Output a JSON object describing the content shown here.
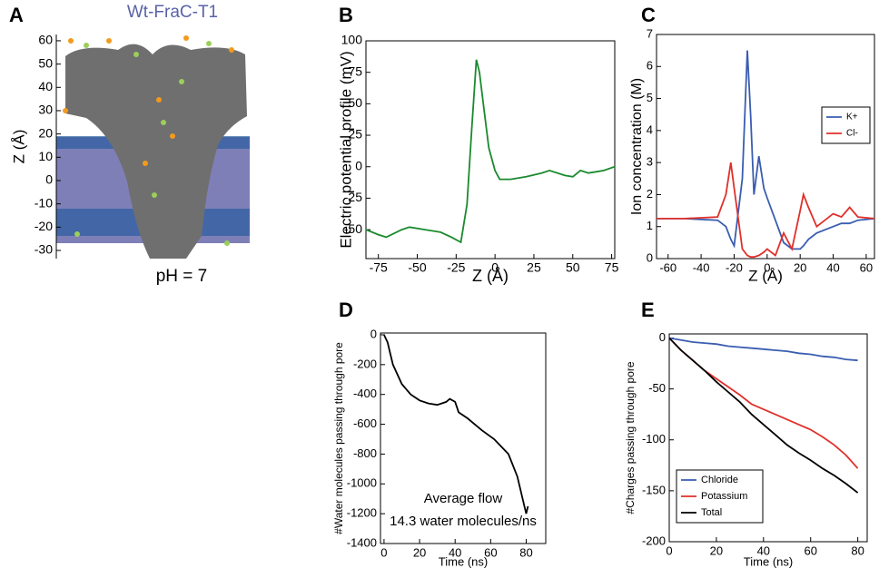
{
  "chart_data": [
    {
      "type": "image",
      "panel": "A",
      "title": "Wt-FraC-T1",
      "caption": "pH = 7",
      "ylabel": "Z (Å)",
      "ylim": [
        -33.5,
        62.7
      ],
      "yticks": [
        60,
        50,
        40,
        30,
        20,
        10,
        0,
        -10,
        -20,
        -30
      ]
    },
    {
      "type": "line",
      "panel": "B",
      "xlabel": "Z (Å)",
      "ylabel": "Electric potential profile (mV)",
      "color": "#1a8a2e",
      "x": [
        -83,
        -75,
        -70,
        -60,
        -55,
        -45,
        -35,
        -28,
        -22,
        -18,
        -15,
        -12,
        -10,
        -7,
        -4,
        0,
        3,
        10,
        20,
        30,
        35,
        45,
        50,
        55,
        60,
        65,
        70,
        77
      ],
      "values": [
        -50,
        -54,
        -56,
        -50,
        -48,
        -50,
        -52,
        -56,
        -60,
        -30,
        30,
        85,
        75,
        45,
        15,
        -3,
        -10,
        -10,
        -8,
        -5,
        -3,
        -7,
        -8,
        -3,
        -5,
        -4,
        -3,
        0
      ],
      "xlim": [
        -83,
        77
      ],
      "xticks": [
        -75,
        -50,
        -25,
        0,
        25,
        50,
        75
      ],
      "ylim": [
        -73,
        100
      ],
      "yticks": [
        -50,
        -25,
        0,
        25,
        50,
        75,
        100
      ]
    },
    {
      "type": "line",
      "panel": "C",
      "xlabel": "Z (Å)",
      "ylabel": "Ion concentration (M)",
      "legend": "upper right",
      "x": [
        -67,
        -50,
        -30,
        -25,
        -22,
        -20,
        -15,
        -12,
        -10,
        -8,
        -5,
        -2,
        0,
        5,
        10,
        15,
        20,
        22,
        25,
        30,
        40,
        45,
        50,
        55,
        65
      ],
      "series": [
        {
          "name": "K+",
          "color": "#3a5db0",
          "values": [
            1.25,
            1.25,
            1.2,
            1.0,
            0.6,
            0.4,
            2.5,
            6.5,
            4.5,
            2.0,
            3.2,
            2.2,
            1.9,
            1.2,
            0.5,
            0.3,
            0.3,
            0.4,
            0.6,
            0.8,
            1.0,
            1.1,
            1.1,
            1.2,
            1.25
          ]
        },
        {
          "name": "Cl-",
          "color": "#e0302a",
          "values": [
            1.25,
            1.25,
            1.3,
            2.0,
            3.0,
            2.2,
            0.3,
            0.1,
            0.05,
            0.05,
            0.1,
            0.2,
            0.3,
            0.1,
            0.8,
            0.3,
            1.5,
            2.0,
            1.6,
            1.0,
            1.4,
            1.3,
            1.6,
            1.3,
            1.25
          ]
        }
      ],
      "xlim": [
        -67,
        65
      ],
      "xticks": [
        -60,
        -40,
        -20,
        0,
        20,
        40,
        60
      ],
      "ylim": [
        0,
        7
      ],
      "yticks": [
        0,
        1,
        2,
        3,
        4,
        5,
        6,
        7
      ]
    },
    {
      "type": "line",
      "panel": "D",
      "xlabel": "Time (ns)",
      "ylabel": "#Water molecules passing through pore",
      "color": "#000000",
      "annotations": [
        "Average flow",
        "14.3 water molecules/ns"
      ],
      "x": [
        0,
        2,
        5,
        10,
        15,
        20,
        25,
        30,
        35,
        37,
        40,
        42,
        47,
        55,
        62,
        70,
        75,
        79,
        80,
        81
      ],
      "values": [
        0,
        -50,
        -200,
        -330,
        -400,
        -440,
        -460,
        -470,
        -450,
        -430,
        -450,
        -520,
        -560,
        -640,
        -700,
        -800,
        -950,
        -1150,
        -1200,
        -1150
      ],
      "xlim": [
        -2,
        91
      ],
      "xticks": [
        0,
        20,
        40,
        60,
        80
      ],
      "ylim": [
        -1400,
        12
      ],
      "yticks": [
        -1400,
        -1200,
        -1000,
        -800,
        -600,
        -400,
        -200,
        0
      ]
    },
    {
      "type": "line",
      "panel": "E",
      "xlabel": "Time (ns)",
      "ylabel": "#Charges passing through pore",
      "legend": "lower left",
      "x": [
        0,
        5,
        10,
        15,
        20,
        25,
        30,
        35,
        40,
        45,
        50,
        55,
        60,
        65,
        70,
        75,
        80
      ],
      "series": [
        {
          "name": "Chloride",
          "color": "#3a5db0",
          "values": [
            0,
            -2,
            -4,
            -5,
            -6,
            -8,
            -9,
            -10,
            -11,
            -12,
            -13,
            -15,
            -16,
            -18,
            -19,
            -21,
            -22
          ]
        },
        {
          "name": "Potassium",
          "color": "#e0302a",
          "values": [
            0,
            -12,
            -22,
            -32,
            -40,
            -48,
            -56,
            -65,
            -70,
            -75,
            -80,
            -85,
            -90,
            -97,
            -105,
            -115,
            -128
          ]
        },
        {
          "name": "Total",
          "color": "#000000",
          "values": [
            0,
            -12,
            -22,
            -32,
            -43,
            -53,
            -63,
            -75,
            -85,
            -95,
            -105,
            -113,
            -120,
            -128,
            -135,
            -143,
            -152
          ]
        }
      ],
      "xlim": [
        0,
        84
      ],
      "xticks": [
        0,
        20,
        40,
        60,
        80
      ],
      "ylim": [
        -200,
        4
      ],
      "yticks": [
        -200,
        -150,
        -100,
        -50,
        0
      ]
    }
  ]
}
